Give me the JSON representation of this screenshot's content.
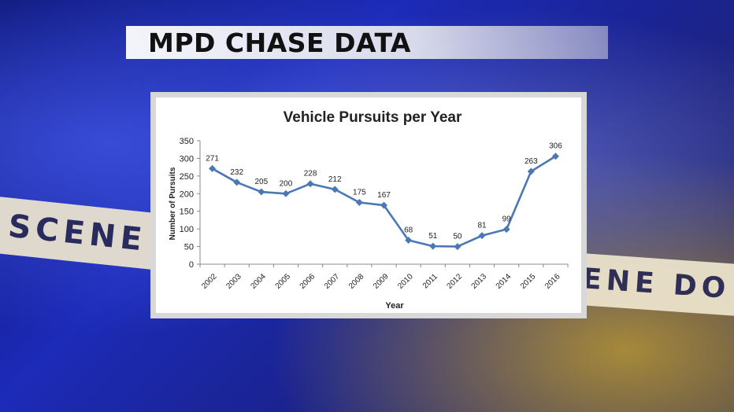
{
  "banner": {
    "title": "MPD CHASE DATA"
  },
  "tape": {
    "left_text": "SCENE DO",
    "right_text": "ENE DO N"
  },
  "colors": {
    "line": "#4a78b5",
    "marker": "#4a78b5",
    "axis": "#888888"
  },
  "chart_data": {
    "type": "line",
    "title": "Vehicle Pursuits per Year",
    "xlabel": "Year",
    "ylabel": "Number of Pursuits",
    "categories": [
      "2002",
      "2003",
      "2004",
      "2005",
      "2006",
      "2007",
      "2008",
      "2009",
      "2010",
      "2011",
      "2012",
      "2013",
      "2014",
      "2015",
      "2016"
    ],
    "values": [
      271,
      232,
      205,
      200,
      228,
      212,
      175,
      167,
      68,
      51,
      50,
      81,
      99,
      263,
      306
    ],
    "ylim": [
      0,
      350
    ],
    "yticks": [
      0,
      50,
      100,
      150,
      200,
      250,
      300,
      350
    ],
    "grid": false,
    "legend": "none",
    "marker": "diamond",
    "data_labels": true
  }
}
